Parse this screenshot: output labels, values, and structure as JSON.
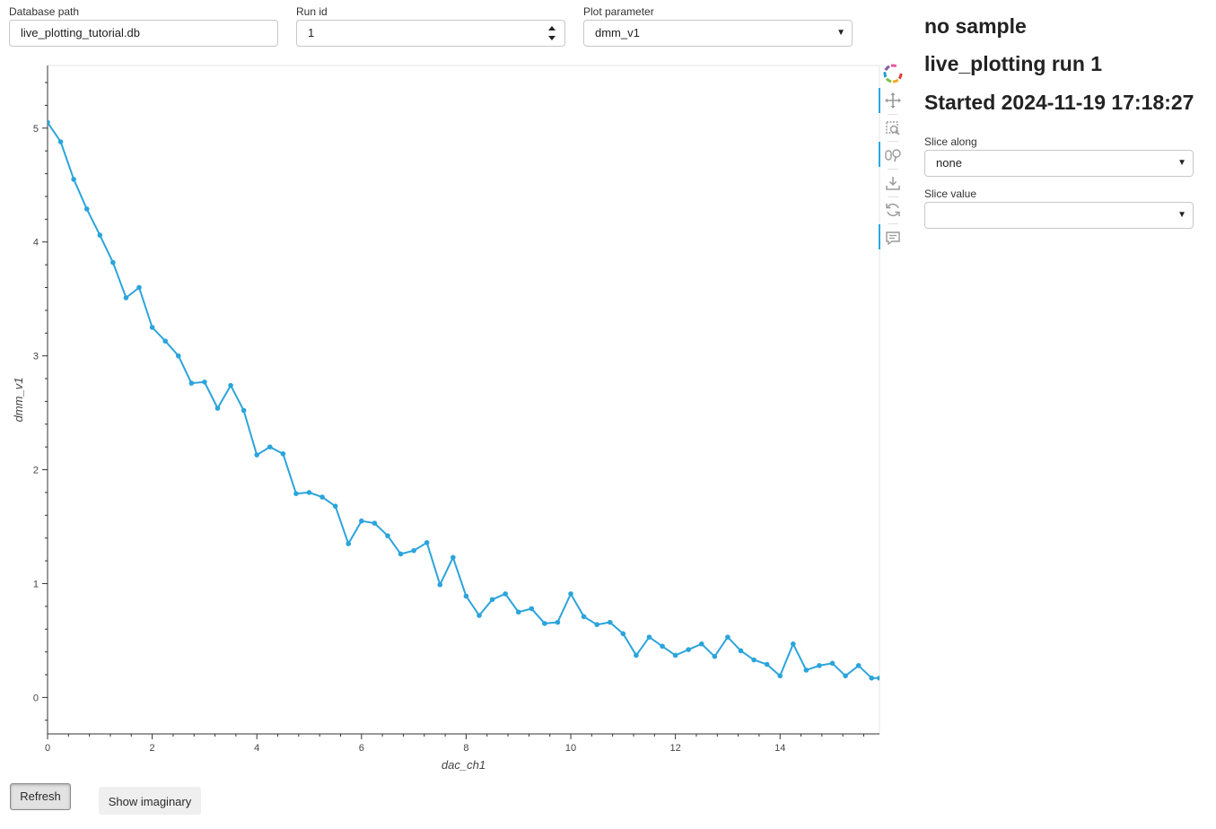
{
  "controls": {
    "db_path": {
      "label": "Database path",
      "value": "live_plotting_tutorial.db"
    },
    "run_id": {
      "label": "Run id",
      "value": "1"
    },
    "plot_param": {
      "label": "Plot parameter",
      "value": "dmm_v1"
    }
  },
  "side": {
    "sample": "no sample",
    "run_title": "live_plotting run 1",
    "started": "Started 2024-11-19 17:18:27",
    "slice_along": {
      "label": "Slice along",
      "value": "none"
    },
    "slice_value": {
      "label": "Slice value",
      "value": ""
    }
  },
  "buttons": {
    "refresh": "Refresh",
    "show_imaginary": "Show imaginary"
  },
  "toolbar": {
    "icons": [
      "bokeh-logo-icon",
      "pan-icon",
      "box-zoom-icon",
      "wheel-zoom-icon",
      "save-icon",
      "reset-icon",
      "hover-icon"
    ]
  },
  "colors": {
    "line": "#2ba4dc",
    "accent": "#26aae1"
  },
  "chart_data": {
    "type": "line",
    "title": "",
    "xlabel": "dac_ch1",
    "ylabel": "dmm_v1",
    "xlim": [
      0,
      15.9
    ],
    "ylim": [
      -0.32,
      5.55
    ],
    "xticks": [
      0,
      2,
      4,
      6,
      8,
      10,
      12,
      14
    ],
    "yticks": [
      0,
      1,
      2,
      3,
      4,
      5
    ],
    "grid": false,
    "series": [
      {
        "name": "",
        "markers": true,
        "x": [
          0,
          0.25,
          0.5,
          0.75,
          1.0,
          1.25,
          1.5,
          1.75,
          2.0,
          2.25,
          2.5,
          2.75,
          3.0,
          3.25,
          3.5,
          3.75,
          4.0,
          4.25,
          4.5,
          4.75,
          5.0,
          5.25,
          5.5,
          5.75,
          6.0,
          6.25,
          6.5,
          6.75,
          7.0,
          7.25,
          7.5,
          7.75,
          8.0,
          8.25,
          8.5,
          8.75,
          9.0,
          9.25,
          9.5,
          9.75,
          10.0,
          10.25,
          10.5,
          10.75,
          11.0,
          11.25,
          11.5,
          11.75,
          12.0,
          12.25,
          12.5,
          12.75,
          13.0,
          13.25,
          13.5,
          13.75,
          14.0,
          14.25,
          14.5,
          14.75,
          15.0,
          15.25,
          15.5,
          15.75,
          15.9
        ],
        "y": [
          5.05,
          4.88,
          4.55,
          4.29,
          4.06,
          3.82,
          3.51,
          3.6,
          3.25,
          3.13,
          3.0,
          2.76,
          2.77,
          2.54,
          2.74,
          2.52,
          2.13,
          2.2,
          2.14,
          1.79,
          1.8,
          1.76,
          1.68,
          1.35,
          1.55,
          1.53,
          1.42,
          1.26,
          1.29,
          1.36,
          0.99,
          1.23,
          0.89,
          0.72,
          0.86,
          0.91,
          0.75,
          0.78,
          0.65,
          0.66,
          0.91,
          0.71,
          0.64,
          0.66,
          0.56,
          0.37,
          0.53,
          0.45,
          0.37,
          0.42,
          0.47,
          0.36,
          0.53,
          0.41,
          0.33,
          0.29,
          0.19,
          0.47,
          0.24,
          0.28,
          0.3,
          0.19,
          0.28,
          0.17,
          0.17
        ]
      }
    ]
  }
}
